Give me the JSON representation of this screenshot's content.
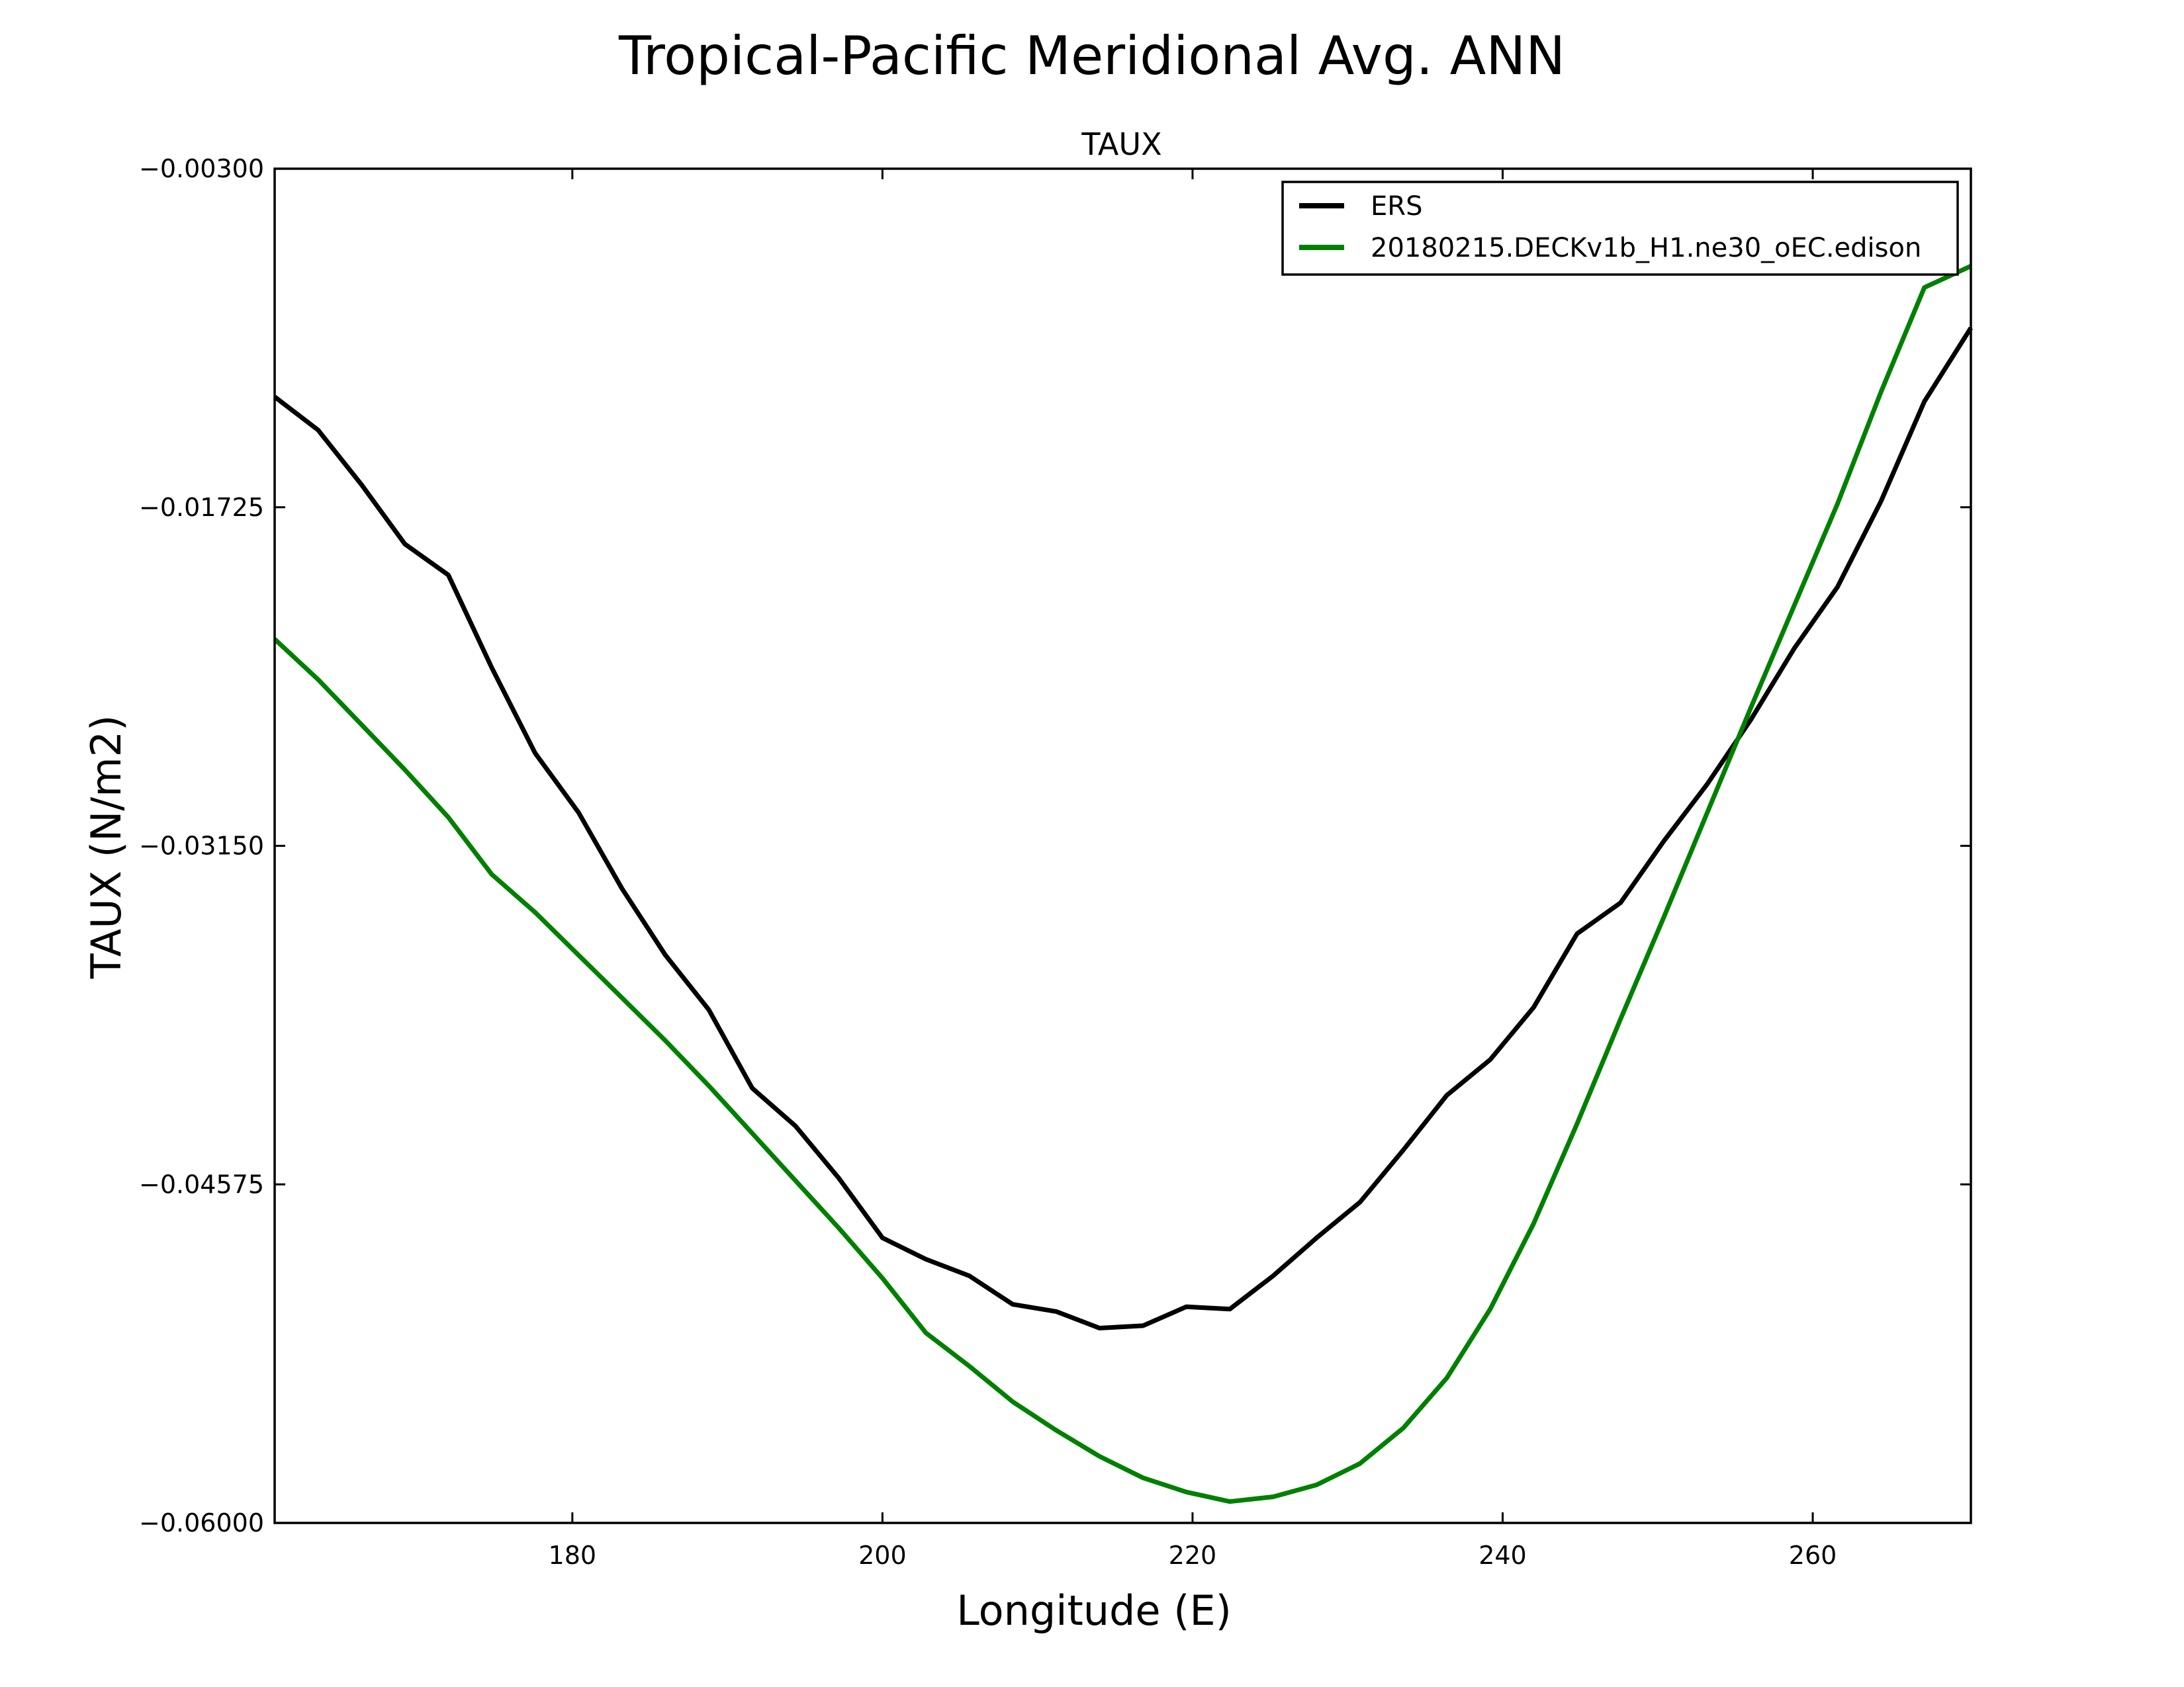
{
  "chart_data": {
    "type": "line",
    "title": "Tropical-Pacific Meridional Avg. ANN",
    "subtitle": "TAUX",
    "xlabel": "Longitude (E)",
    "ylabel": "TAUX (N/m2)",
    "xlim": [
      160.8,
      270.2
    ],
    "ylim": [
      -0.06,
      -0.003
    ],
    "xticks": [
      180,
      200,
      220,
      240,
      260
    ],
    "xtick_labels": [
      "180",
      "200",
      "220",
      "240",
      "260"
    ],
    "yticks": [
      -0.003,
      -0.01725,
      -0.0315,
      -0.04575,
      -0.06
    ],
    "ytick_labels": [
      "−0.00300",
      "−0.01725",
      "−0.03150",
      "−0.04575",
      "−0.06000"
    ],
    "grid": false,
    "legend_position": "top-right",
    "series": [
      {
        "name": "ERS",
        "color": "#000000",
        "x": [
          160.8,
          163.6,
          166.4,
          169.2,
          172.0,
          174.8,
          177.6,
          180.4,
          183.2,
          186.0,
          188.8,
          191.6,
          194.4,
          197.2,
          200.0,
          202.8,
          205.6,
          208.4,
          211.2,
          214.0,
          216.8,
          219.6,
          222.4,
          225.2,
          228.0,
          230.8,
          233.6,
          236.4,
          239.2,
          242.0,
          244.8,
          247.6,
          250.4,
          253.2,
          256.0,
          258.8,
          261.6,
          264.4,
          267.2,
          270.2
        ],
        "y": [
          -0.0126,
          -0.014,
          -0.0163,
          -0.0188,
          -0.0201,
          -0.024,
          -0.0276,
          -0.0301,
          -0.0333,
          -0.0361,
          -0.0384,
          -0.0417,
          -0.0433,
          -0.0455,
          -0.048,
          -0.0489,
          -0.0496,
          -0.0508,
          -0.0511,
          -0.0518,
          -0.0517,
          -0.0509,
          -0.051,
          -0.0496,
          -0.048,
          -0.0465,
          -0.0443,
          -0.042,
          -0.0405,
          -0.0383,
          -0.0352,
          -0.0339,
          -0.0313,
          -0.0289,
          -0.0262,
          -0.0232,
          -0.0206,
          -0.017,
          -0.0128,
          -0.0097
        ]
      },
      {
        "name": "20180215.DECKv1b_H1.ne30_oEC.edison",
        "color": "#008000",
        "x": [
          160.8,
          163.6,
          166.4,
          169.2,
          172.0,
          174.8,
          177.6,
          180.4,
          183.2,
          186.0,
          188.8,
          191.6,
          194.4,
          197.2,
          200.0,
          202.8,
          205.6,
          208.4,
          211.2,
          214.0,
          216.8,
          219.6,
          222.4,
          225.2,
          228.0,
          230.8,
          233.6,
          236.4,
          239.2,
          242.0,
          244.8,
          247.6,
          250.4,
          253.2,
          256.0,
          258.8,
          261.6,
          264.4,
          267.2,
          270.2
        ],
        "y": [
          -0.0228,
          -0.0245,
          -0.0264,
          -0.0283,
          -0.0303,
          -0.0327,
          -0.0343,
          -0.0361,
          -0.0379,
          -0.0397,
          -0.0416,
          -0.0436,
          -0.0456,
          -0.0476,
          -0.0497,
          -0.052,
          -0.0534,
          -0.0549,
          -0.0561,
          -0.0572,
          -0.0581,
          -0.0587,
          -0.0591,
          -0.0589,
          -0.0584,
          -0.0575,
          -0.056,
          -0.0539,
          -0.051,
          -0.0474,
          -0.0432,
          -0.0388,
          -0.0345,
          -0.0301,
          -0.0257,
          -0.0214,
          -0.0171,
          -0.0124,
          -0.008,
          -0.0071
        ]
      }
    ]
  }
}
